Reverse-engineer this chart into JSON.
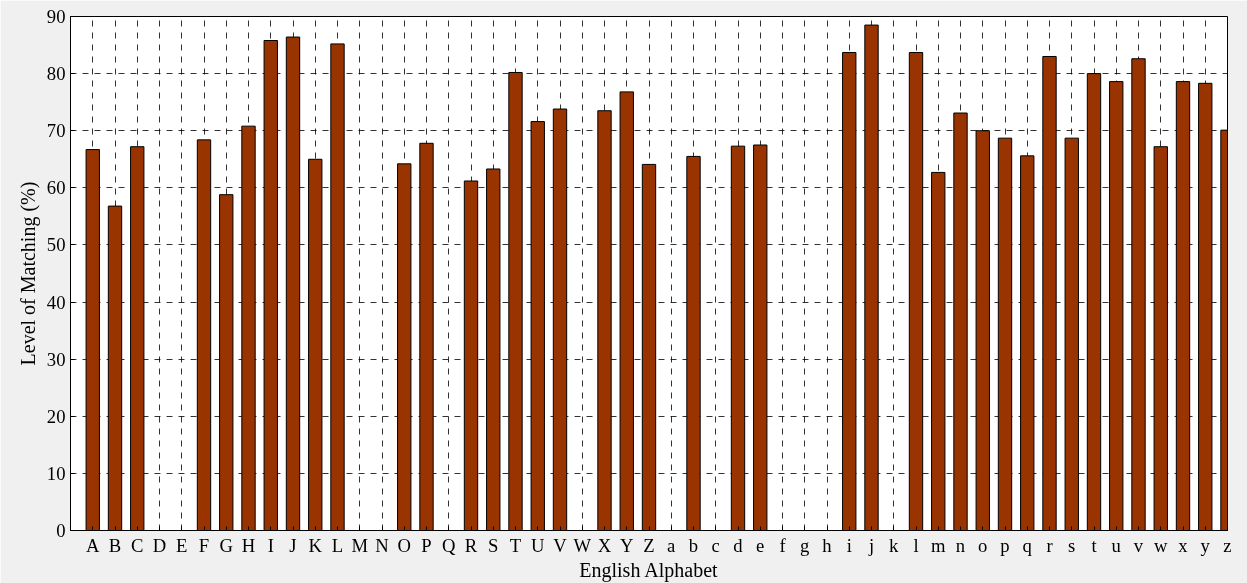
{
  "chart_data": {
    "type": "bar",
    "xlabel": "English Alphabet",
    "ylabel": "Level of Matching (%)",
    "categories": [
      "A",
      "B",
      "C",
      "D",
      "E",
      "F",
      "G",
      "H",
      "I",
      "J",
      "K",
      "L",
      "M",
      "N",
      "O",
      "P",
      "Q",
      "R",
      "S",
      "T",
      "U",
      "V",
      "W",
      "X",
      "Y",
      "Z",
      "a",
      "b",
      "c",
      "d",
      "e",
      "f",
      "g",
      "h",
      "i",
      "j",
      "k",
      "l",
      "m",
      "n",
      "o",
      "p",
      "q",
      "r",
      "s",
      "t",
      "u",
      "v",
      "w",
      "x",
      "y",
      "z"
    ],
    "values": [
      66.7,
      56.8,
      67.2,
      null,
      null,
      68.4,
      58.8,
      70.8,
      85.8,
      86.4,
      65.0,
      85.2,
      null,
      null,
      64.2,
      67.8,
      null,
      61.2,
      63.3,
      80.2,
      71.6,
      73.8,
      null,
      73.5,
      76.8,
      64.1,
      null,
      65.5,
      null,
      67.3,
      67.5,
      null,
      null,
      null,
      83.7,
      88.5,
      null,
      83.7,
      62.7,
      73.1,
      70.0,
      68.7,
      65.6,
      83.0,
      68.7,
      80.0,
      78.6,
      82.6,
      67.2,
      78.6,
      78.3,
      70.1
    ],
    "color": "#993300",
    "ylim": [
      0,
      90
    ],
    "yticks": [
      0,
      10,
      20,
      30,
      40,
      50,
      60,
      70,
      80,
      90
    ],
    "grid": true
  }
}
